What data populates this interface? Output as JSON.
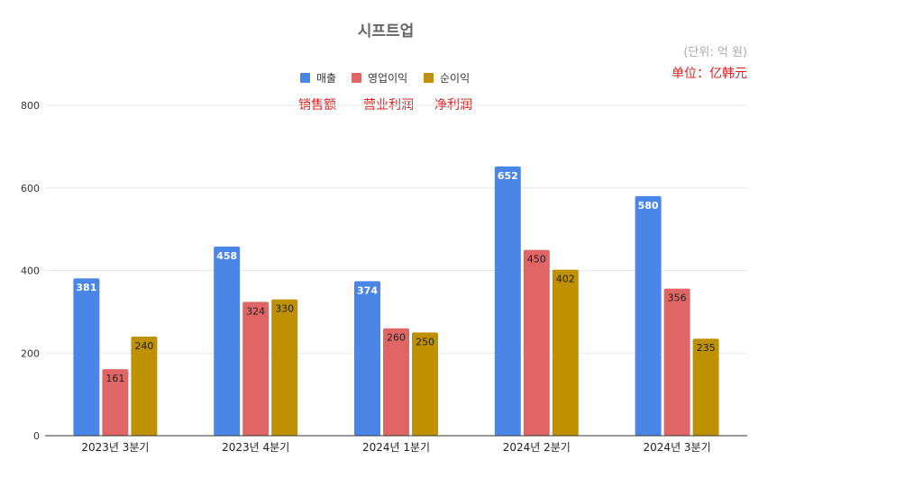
{
  "chart_data": {
    "type": "bar",
    "title": "시프트업",
    "unit_label": "(단위: 억 원)",
    "unit_label_zh": "单位：亿韩元",
    "categories": [
      "2023년 3분기",
      "2023년 4분기",
      "2024년 1분기",
      "2024년 2분기",
      "2024년 3분기"
    ],
    "series": [
      {
        "name": "매출",
        "name_zh": "销售额",
        "color": "#4a86e8",
        "values": [
          381,
          458,
          374,
          652,
          580
        ]
      },
      {
        "name": "영업이익",
        "name_zh": "营业利润",
        "color": "#e06666",
        "values": [
          161,
          324,
          260,
          450,
          356
        ]
      },
      {
        "name": "순이익",
        "name_zh": "净利润",
        "color": "#bf9000",
        "values": [
          240,
          330,
          250,
          402,
          235
        ]
      }
    ],
    "ylim": [
      0,
      800
    ],
    "yticks": [
      "0",
      "200",
      "400",
      "600",
      "800"
    ],
    "grid": true,
    "legend_position": "top-center"
  }
}
